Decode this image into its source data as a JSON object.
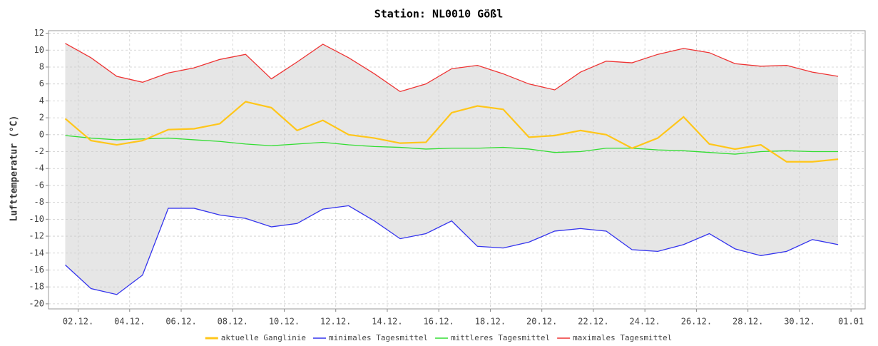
{
  "chart_data": {
    "type": "line",
    "title": "Station: NL0010 Gößl",
    "y_label": "Lufttemperatur (°C)",
    "x": [
      1.5,
      2.5,
      3.5,
      4.5,
      5.5,
      6.5,
      7.5,
      8.5,
      9.5,
      10.5,
      11.5,
      12.5,
      13.5,
      14.5,
      15.5,
      16.5,
      17.5,
      18.5,
      19.5,
      20.5,
      21.5,
      22.5,
      23.5,
      24.5,
      25.5,
      26.5,
      27.5,
      28.5,
      29.5,
      30.5,
      31.5
    ],
    "xlim": [
      0.85,
      32.55
    ],
    "xticks": [
      {
        "value": 2,
        "label": "02.12."
      },
      {
        "value": 4,
        "label": "04.12."
      },
      {
        "value": 6,
        "label": "06.12."
      },
      {
        "value": 8,
        "label": "08.12."
      },
      {
        "value": 10,
        "label": "10.12."
      },
      {
        "value": 12,
        "label": "12.12."
      },
      {
        "value": 14,
        "label": "14.12."
      },
      {
        "value": 16,
        "label": "16.12."
      },
      {
        "value": 18,
        "label": "18.12."
      },
      {
        "value": 20,
        "label": "20.12."
      },
      {
        "value": 22,
        "label": "22.12."
      },
      {
        "value": 24,
        "label": "24.12."
      },
      {
        "value": 26,
        "label": "26.12."
      },
      {
        "value": 28,
        "label": "28.12."
      },
      {
        "value": 30,
        "label": "30.12."
      },
      {
        "value": 32,
        "label": "01.01"
      }
    ],
    "ylim": [
      -20.6,
      12.3
    ],
    "yticks": [
      -20,
      -18,
      -16,
      -14,
      -12,
      -10,
      -8,
      -6,
      -4,
      -2,
      0,
      2,
      4,
      6,
      8,
      10,
      12
    ],
    "grid": true,
    "band": {
      "lower": 1,
      "upper": 3,
      "color": "#e6e6e6"
    },
    "series": [
      {
        "name": "aktuelle Ganglinie",
        "color": "#ffc61a",
        "values": [
          1.9,
          -0.7,
          -1.2,
          -0.7,
          0.6,
          0.7,
          1.3,
          3.9,
          3.2,
          0.5,
          1.7,
          0.0,
          -0.4,
          -1.0,
          -0.9,
          2.6,
          3.4,
          3.0,
          -0.3,
          -0.1,
          0.5,
          0.0,
          -1.6,
          -0.4,
          2.1,
          -1.1,
          -1.7,
          -1.2,
          -3.2,
          -3.2,
          -2.9
        ]
      },
      {
        "name": "minimales Tagesmittel",
        "color": "#3333ee",
        "values": [
          -15.4,
          -18.2,
          -18.9,
          -16.6,
          -8.7,
          -8.7,
          -9.5,
          -9.9,
          -10.9,
          -10.5,
          -8.8,
          -8.4,
          -10.2,
          -12.3,
          -11.7,
          -10.2,
          -13.2,
          -13.4,
          -12.7,
          -11.4,
          -11.1,
          -11.4,
          -13.6,
          -13.8,
          -13.0,
          -11.7,
          -13.5,
          -14.3,
          -13.8,
          -12.4,
          -13.0
        ]
      },
      {
        "name": "mittleres Tagesmittel",
        "color": "#33dd33",
        "values": [
          -0.1,
          -0.4,
          -0.6,
          -0.5,
          -0.4,
          -0.6,
          -0.8,
          -1.1,
          -1.3,
          -1.1,
          -0.9,
          -1.2,
          -1.4,
          -1.5,
          -1.7,
          -1.6,
          -1.6,
          -1.5,
          -1.7,
          -2.1,
          -2.0,
          -1.6,
          -1.6,
          -1.8,
          -1.9,
          -2.1,
          -2.3,
          -2.0,
          -1.9,
          -2.0,
          -2.0
        ]
      },
      {
        "name": "maximales Tagesmittel",
        "color": "#ee3333",
        "values": [
          10.8,
          9.1,
          6.9,
          6.2,
          7.3,
          7.9,
          8.9,
          9.5,
          6.6,
          8.6,
          10.7,
          9.1,
          7.2,
          5.1,
          6.0,
          7.8,
          8.2,
          7.2,
          6.0,
          5.3,
          7.4,
          8.7,
          8.5,
          9.5,
          10.2,
          9.7,
          8.4,
          8.1,
          8.2,
          7.4,
          6.9
        ]
      }
    ]
  }
}
